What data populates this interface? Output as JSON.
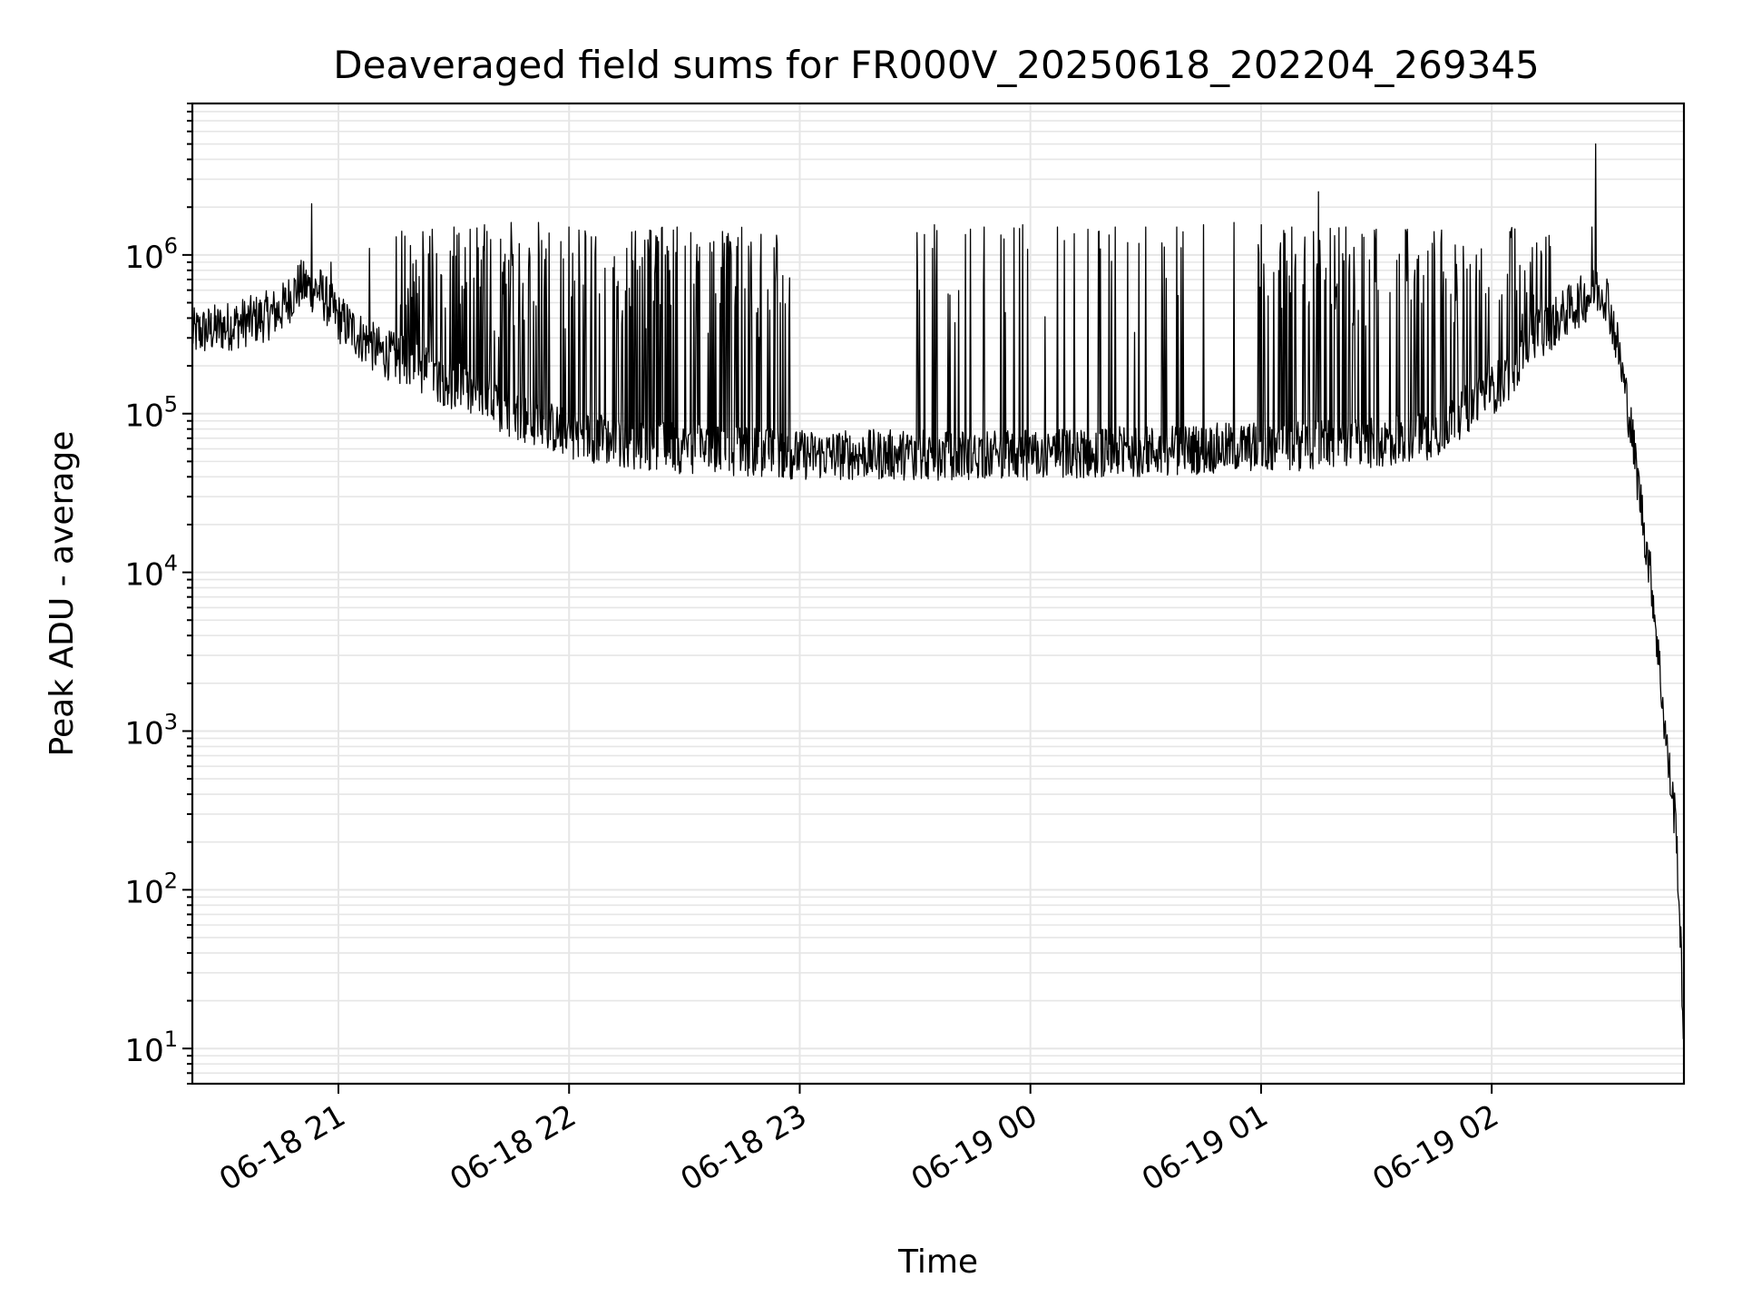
{
  "chart_data": {
    "type": "line",
    "title": "Deaveraged field sums for FR000V_20250618_202204_269345",
    "xlabel": "Time",
    "ylabel": "Peak ADU - average",
    "x_range": [
      "2025-06-18 20:22",
      "2025-06-19 02:50"
    ],
    "y_scale": "log",
    "ylim": [
      6,
      9000000
    ],
    "grid": true,
    "x_ticks": [
      {
        "t": "2025-06-18 21:00",
        "label": "06-18 21"
      },
      {
        "t": "2025-06-18 22:00",
        "label": "06-18 22"
      },
      {
        "t": "2025-06-18 23:00",
        "label": "06-18 23"
      },
      {
        "t": "2025-06-19 00:00",
        "label": "06-19 00"
      },
      {
        "t": "2025-06-19 01:00",
        "label": "06-19 01"
      },
      {
        "t": "2025-06-19 02:00",
        "label": "06-19 02"
      }
    ],
    "y_ticks": [
      {
        "value": 10,
        "base": "10",
        "exp": "1"
      },
      {
        "value": 100,
        "base": "10",
        "exp": "2"
      },
      {
        "value": 1000,
        "base": "10",
        "exp": "3"
      },
      {
        "value": 10000,
        "base": "10",
        "exp": "4"
      },
      {
        "value": 100000,
        "base": "10",
        "exp": "5"
      },
      {
        "value": 1000000,
        "base": "10",
        "exp": "6"
      }
    ],
    "line_color": "#000000",
    "series": [
      {
        "baseline_x": [
          "2025-06-18 20:22",
          "2025-06-18 20:30",
          "2025-06-18 20:40",
          "2025-06-18 20:45",
          "2025-06-18 20:50",
          "2025-06-18 20:55",
          "2025-06-18 21:00",
          "2025-06-18 21:10",
          "2025-06-18 21:20",
          "2025-06-18 21:30",
          "2025-06-18 21:45",
          "2025-06-18 22:00",
          "2025-06-18 22:15",
          "2025-06-18 22:30",
          "2025-06-18 22:45",
          "2025-06-18 23:00",
          "2025-06-18 23:30",
          "2025-06-19 00:00",
          "2025-06-19 00:30",
          "2025-06-19 01:00",
          "2025-06-19 01:30",
          "2025-06-19 01:45",
          "2025-06-19 02:00",
          "2025-06-19 02:05",
          "2025-06-19 02:10",
          "2025-06-19 02:15",
          "2025-06-19 02:20",
          "2025-06-19 02:25",
          "2025-06-19 02:28",
          "2025-06-19 02:30",
          "2025-06-19 02:33",
          "2025-06-19 02:36",
          "2025-06-19 02:39",
          "2025-06-19 02:42",
          "2025-06-19 02:44",
          "2025-06-19 02:46",
          "2025-06-19 02:48",
          "2025-06-19 02:50"
        ],
        "baseline_y": [
          320000,
          350000,
          400000,
          450000,
          650000,
          600000,
          400000,
          250000,
          200000,
          150000,
          100000,
          75000,
          65000,
          60000,
          58000,
          55000,
          55000,
          55000,
          58000,
          62000,
          65000,
          75000,
          140000,
          180000,
          300000,
          350000,
          450000,
          550000,
          600000,
          550000,
          250000,
          90000,
          25000,
          7000,
          2000,
          600,
          250,
          12
        ],
        "spikes": [
          {
            "t": "2025-06-18 20:53",
            "y": 2100000
          },
          {
            "t": "2025-06-18 20:58",
            "y": 900000
          },
          {
            "t": "2025-06-18 21:08",
            "y": 1100000
          },
          {
            "t": "2025-06-18 21:15",
            "y": 1300000
          },
          {
            "t": "2025-06-18 21:22",
            "y": 1400000
          },
          {
            "t": "2025-06-18 21:30",
            "y": 1500000
          },
          {
            "t": "2025-06-18 21:38",
            "y": 1550000
          },
          {
            "t": "2025-06-18 21:45",
            "y": 1600000
          },
          {
            "t": "2025-06-18 21:52",
            "y": 1600000
          },
          {
            "t": "2025-06-18 22:00",
            "y": 1500000
          },
          {
            "t": "2025-06-18 22:07",
            "y": 1300000
          },
          {
            "t": "2025-06-18 22:15",
            "y": 1100000
          },
          {
            "t": "2025-06-18 22:25",
            "y": 1000000
          },
          {
            "t": "2025-06-18 22:40",
            "y": 900000
          },
          {
            "t": "2025-06-18 22:55",
            "y": 500000
          },
          {
            "t": "2025-06-18 23:35",
            "y": 1550000
          },
          {
            "t": "2025-06-18 23:48",
            "y": 1500000
          },
          {
            "t": "2025-06-18 23:58",
            "y": 1550000
          },
          {
            "t": "2025-06-19 00:07",
            "y": 1500000
          },
          {
            "t": "2025-06-19 00:15",
            "y": 1450000
          },
          {
            "t": "2025-06-19 00:22",
            "y": 1500000
          },
          {
            "t": "2025-06-19 00:30",
            "y": 1500000
          },
          {
            "t": "2025-06-19 00:38",
            "y": 1500000
          },
          {
            "t": "2025-06-19 00:45",
            "y": 1550000
          },
          {
            "t": "2025-06-19 00:53",
            "y": 1600000
          },
          {
            "t": "2025-06-19 01:00",
            "y": 1550000
          },
          {
            "t": "2025-06-19 01:08",
            "y": 1500000
          },
          {
            "t": "2025-06-19 01:15",
            "y": 2500000
          },
          {
            "t": "2025-06-19 01:22",
            "y": 1500000
          },
          {
            "t": "2025-06-19 01:30",
            "y": 1450000
          },
          {
            "t": "2025-06-19 01:38",
            "y": 1450000
          },
          {
            "t": "2025-06-19 01:45",
            "y": 1400000
          },
          {
            "t": "2025-06-19 02:10",
            "y": 900000
          },
          {
            "t": "2025-06-19 02:13",
            "y": 1000000
          },
          {
            "t": "2025-06-19 02:26",
            "y": 1500000
          },
          {
            "t": "2025-06-19 02:27",
            "y": 5000000
          }
        ]
      }
    ]
  }
}
